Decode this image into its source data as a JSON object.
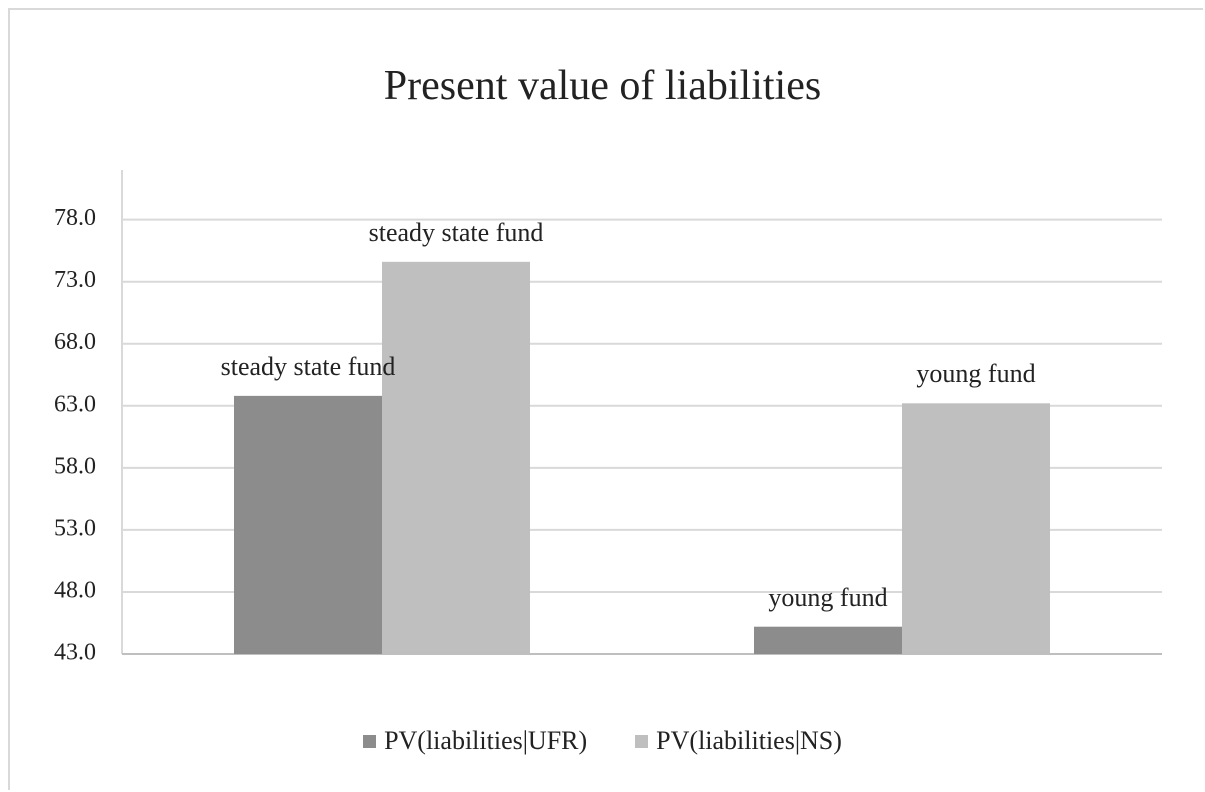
{
  "chart_data": {
    "type": "bar",
    "title": "Present value of liabilities",
    "categories": [
      "steady state fund",
      "young fund"
    ],
    "series": [
      {
        "name": "PV(liabilities|UFR)",
        "color": "#8c8c8c",
        "values": [
          63.8,
          45.2
        ]
      },
      {
        "name": "PV(liabilities|NS)",
        "color": "#bfbfbf",
        "values": [
          74.6,
          63.2
        ]
      }
    ],
    "ylim": [
      43,
      82
    ],
    "yticks": [
      {
        "value": 43,
        "label": "43.0"
      },
      {
        "value": 48,
        "label": "48.0"
      },
      {
        "value": 53,
        "label": "53.0"
      },
      {
        "value": 58,
        "label": "58.0"
      },
      {
        "value": 63,
        "label": "63.0"
      },
      {
        "value": 68,
        "label": "68.0"
      },
      {
        "value": 73,
        "label": "73.0"
      },
      {
        "value": 78,
        "label": "78.0"
      }
    ],
    "grid": true,
    "legend": "bottom"
  }
}
